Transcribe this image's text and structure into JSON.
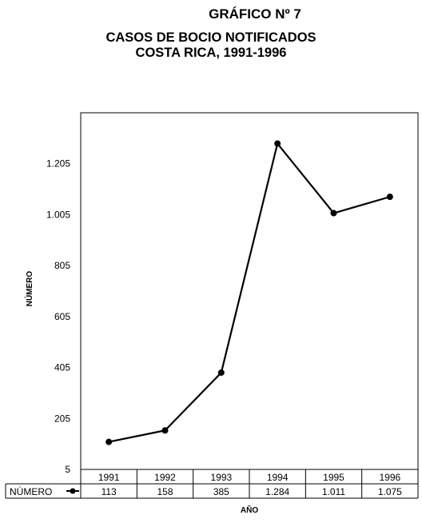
{
  "header": {
    "title_line1": "GRÁFICO Nº 7",
    "title_line2": "CASOS DE BOCIO NOTIFICADOS",
    "title_line3": "COSTA RICA, 1991-1996"
  },
  "chart_data": {
    "type": "line",
    "title": "CASOS DE BOCIO NOTIFICADOS COSTA RICA, 1991-1996",
    "xlabel": "AÑO",
    "ylabel": "NÚMERO",
    "categories": [
      "1991",
      "1992",
      "1993",
      "1994",
      "1995",
      "1996"
    ],
    "series": [
      {
        "name": "NÚMERO",
        "values": [
          113,
          158,
          385,
          1284,
          1011,
          1075
        ],
        "labels": [
          "113",
          "158",
          "385",
          "1.284",
          "1.011",
          "1.075"
        ],
        "color": "#000000"
      }
    ],
    "yticks": [
      {
        "value": 5,
        "label": "5"
      },
      {
        "value": 205,
        "label": "205"
      },
      {
        "value": 405,
        "label": "405"
      },
      {
        "value": 605,
        "label": "605"
      },
      {
        "value": 805,
        "label": "805"
      },
      {
        "value": 1005,
        "label": "1.005"
      },
      {
        "value": 1205,
        "label": "1.205"
      }
    ],
    "ylim": [
      5,
      1405
    ],
    "grid": false,
    "data_table": true
  }
}
